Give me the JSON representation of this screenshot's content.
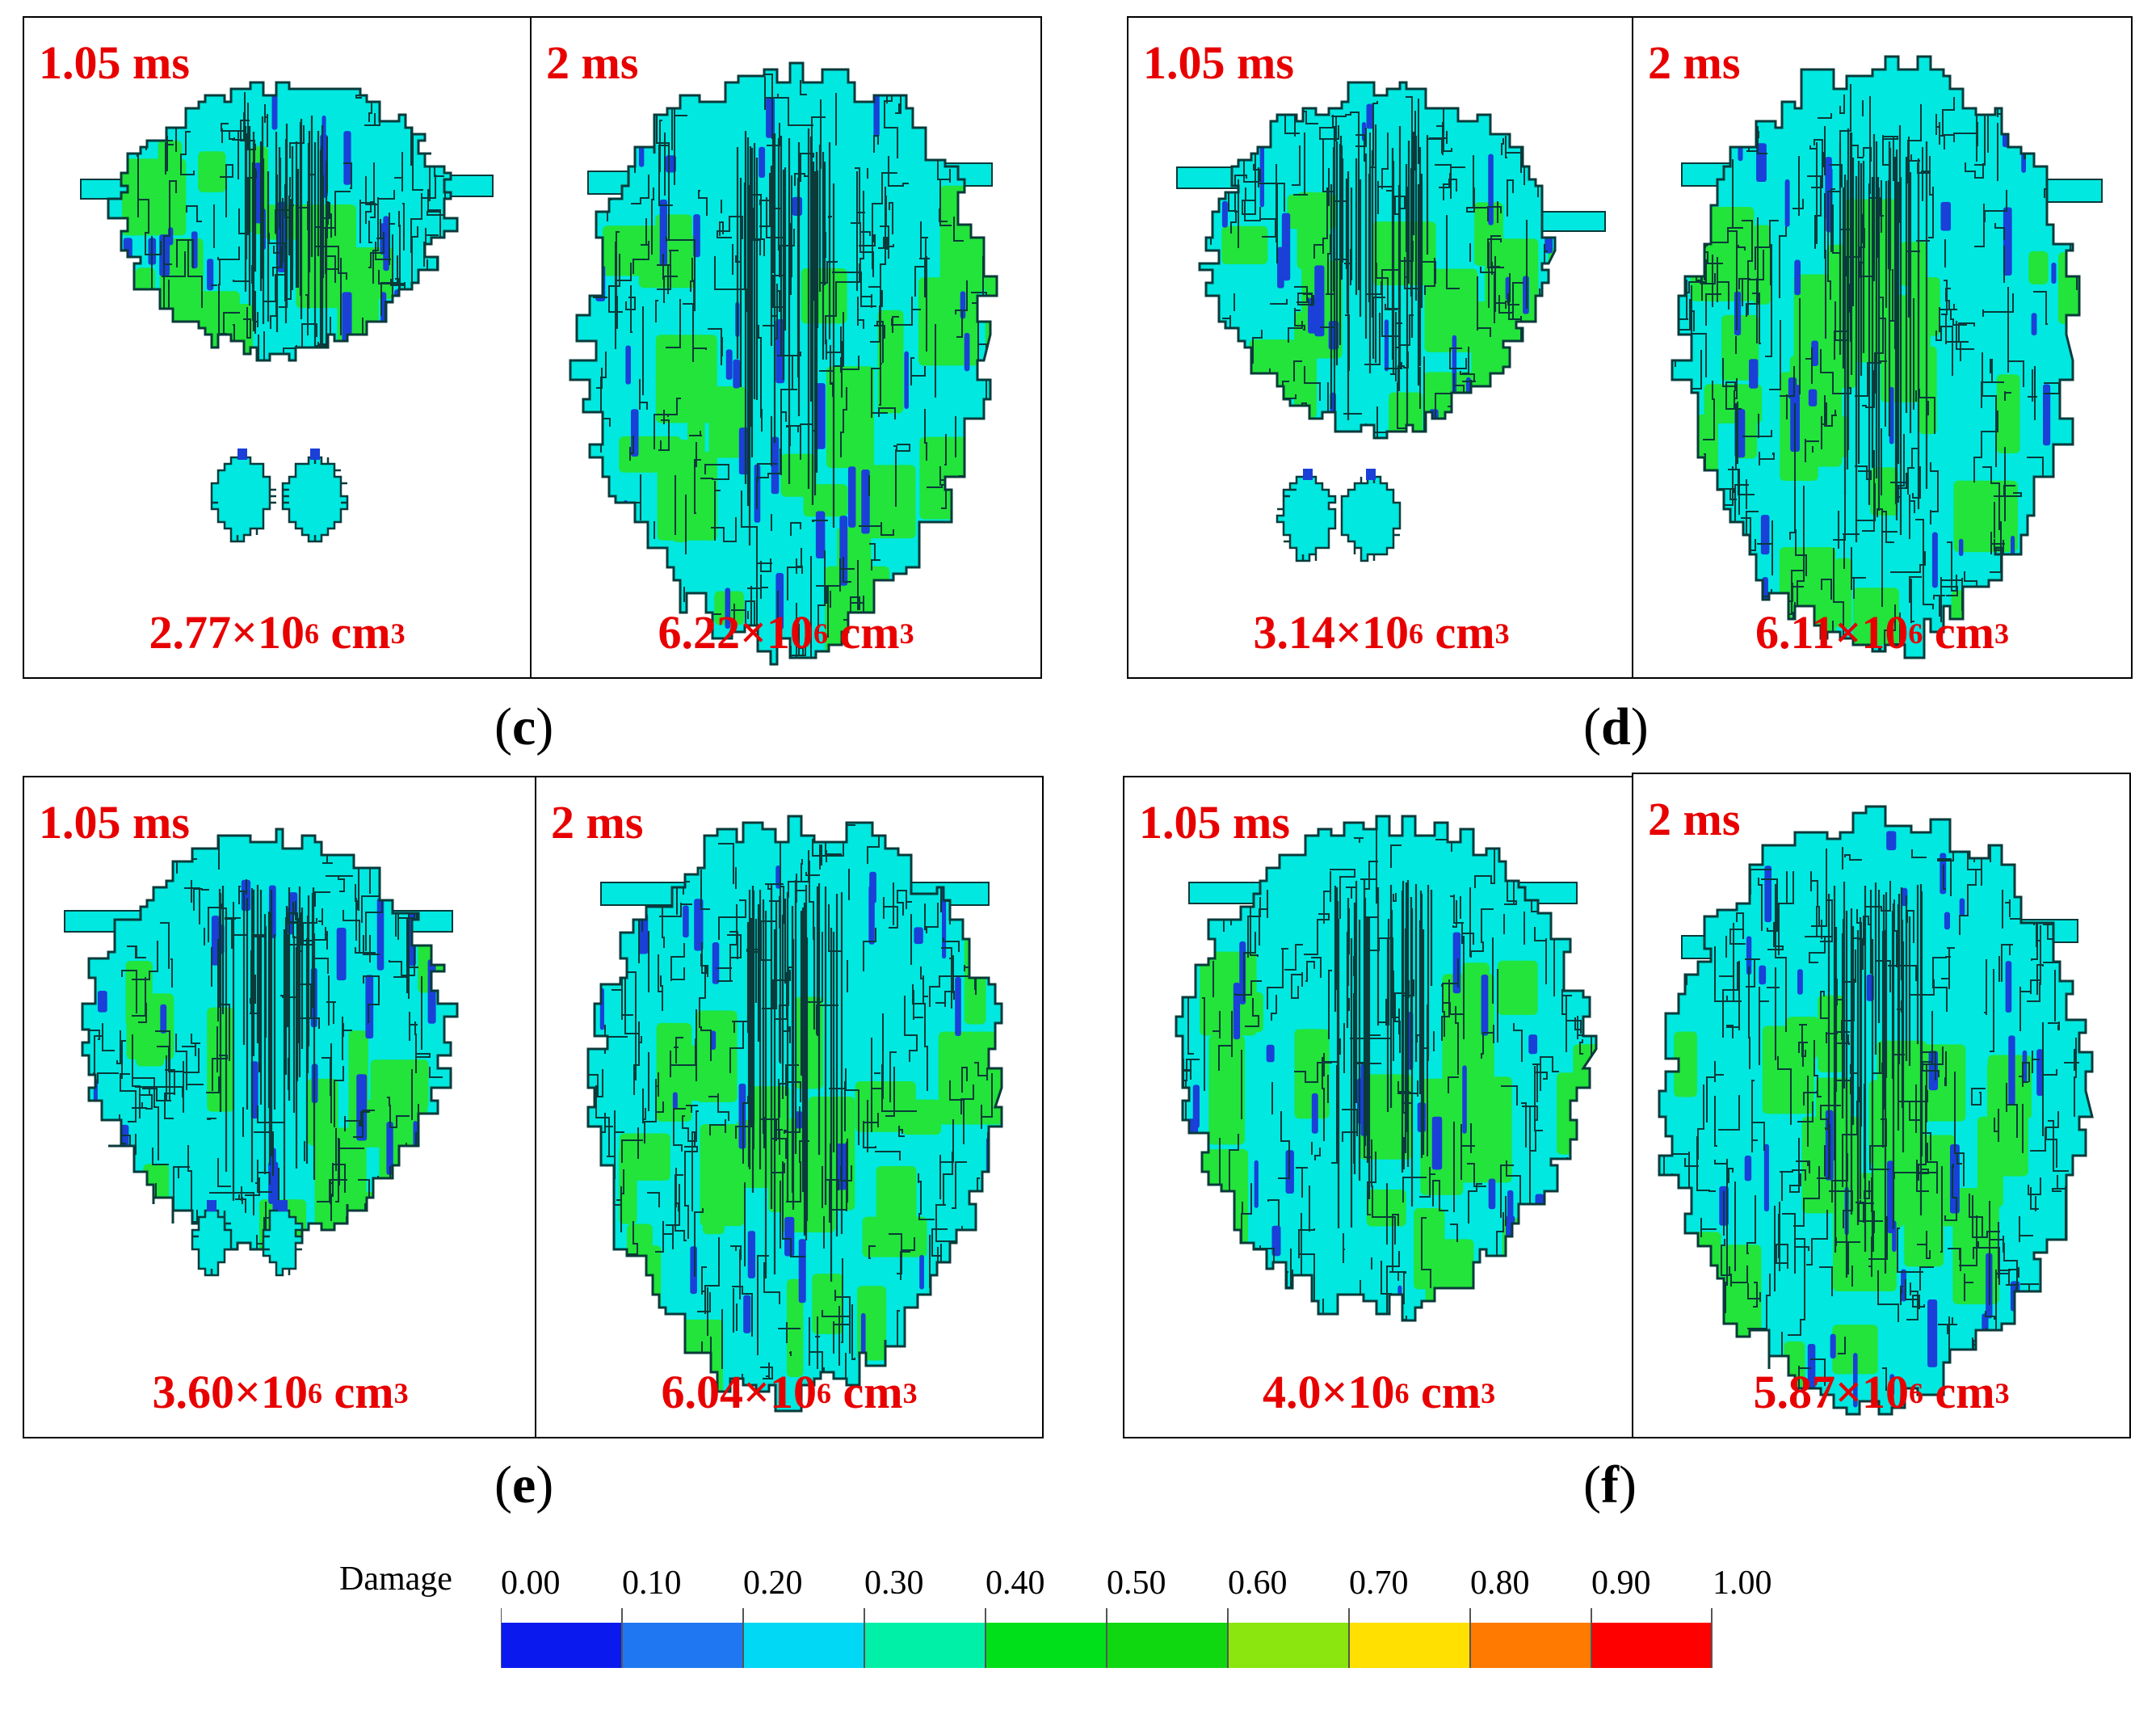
{
  "groups": [
    {
      "label": "c",
      "panels": [
        {
          "time": "1.05 ms",
          "volume_mantissa": "2.77",
          "volume_unit": "cm",
          "volume_exponent": "6",
          "unit_exponent": "3"
        },
        {
          "time": "2 ms",
          "volume_mantissa": "6.22",
          "volume_unit": "cm",
          "volume_exponent": "6",
          "unit_exponent": "3"
        }
      ]
    },
    {
      "label": "d",
      "panels": [
        {
          "time": "1.05 ms",
          "volume_mantissa": "3.14",
          "volume_unit": "cm",
          "volume_exponent": "6",
          "unit_exponent": "3"
        },
        {
          "time": "2 ms",
          "volume_mantissa": "6.11",
          "volume_unit": "cm",
          "volume_exponent": "6",
          "unit_exponent": "3"
        }
      ]
    },
    {
      "label": "e",
      "panels": [
        {
          "time": "1.05 ms",
          "volume_mantissa": "3.60",
          "volume_unit": "cm",
          "volume_exponent": "6",
          "unit_exponent": "3"
        },
        {
          "time": "2 ms",
          "volume_mantissa": "6.04",
          "volume_unit": "cm",
          "volume_exponent": "6",
          "unit_exponent": "3"
        }
      ]
    },
    {
      "label": "f",
      "panels": [
        {
          "time": "1.05 ms",
          "volume_mantissa": "4.0",
          "volume_unit": "cm",
          "volume_exponent": "6",
          "unit_exponent": "3"
        },
        {
          "time": "2 ms",
          "volume_mantissa": "5.87",
          "volume_unit": "cm",
          "volume_exponent": "6",
          "unit_exponent": "3"
        }
      ]
    }
  ],
  "legend": {
    "title": "Damage",
    "ticks": [
      "0.00",
      "0.10",
      "0.20",
      "0.30",
      "0.40",
      "0.50",
      "0.60",
      "0.70",
      "0.80",
      "0.90",
      "1.00"
    ],
    "colors": [
      "#0a1aee",
      "#1f78f2",
      "#00d8f5",
      "#00f0a8",
      "#00e01a",
      "#10d810",
      "#8ae60e",
      "#ffe000",
      "#ff7a00",
      "#ff0000"
    ]
  },
  "palette": {
    "cyan": "#00e8e0",
    "green": "#22e43a",
    "blue": "#1a40d8",
    "edge": "#0a3a3a",
    "label_red": "#e80000"
  }
}
